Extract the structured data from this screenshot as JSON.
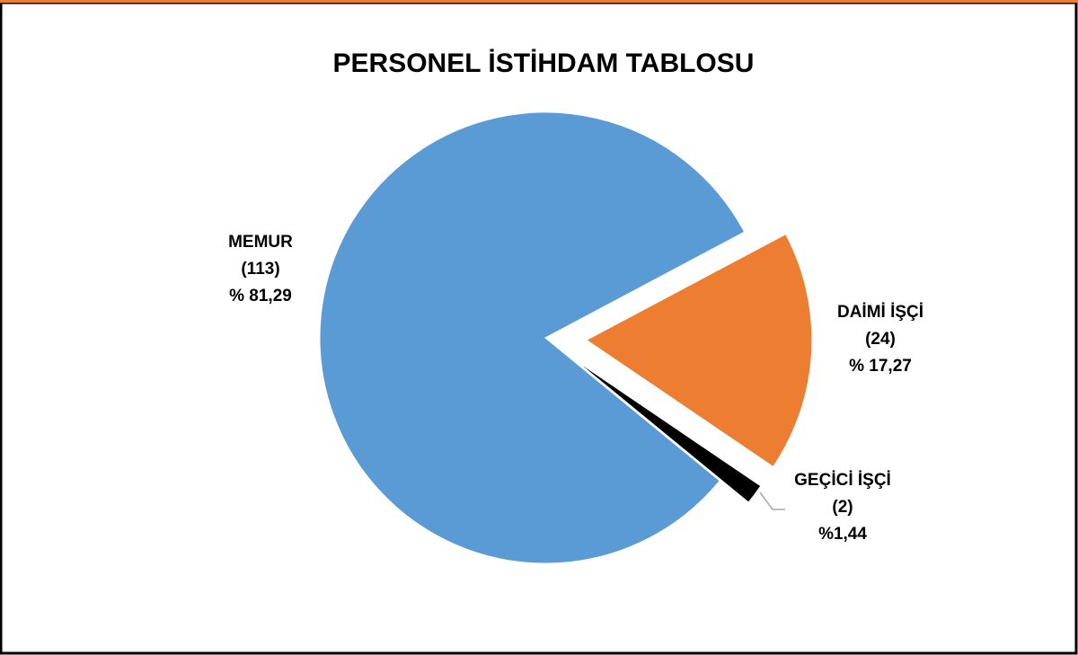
{
  "chart_data": {
    "type": "pie",
    "title": "PERSONEL İSTİHDAM TABLOSU",
    "categories": [
      "MEMUR",
      "DAİMİ İŞÇİ",
      "GEÇİCİ İŞÇİ"
    ],
    "values": [
      113,
      24,
      2
    ],
    "value_labels": [
      "(113)",
      "(24)",
      "(2)"
    ],
    "percentages": [
      81.29,
      17.27,
      1.44
    ],
    "percentage_labels": [
      "% 81,29",
      "% 17,27",
      "%1,44"
    ],
    "colors": [
      "#5b9bd5",
      "#ed7d31",
      "#000000"
    ]
  }
}
